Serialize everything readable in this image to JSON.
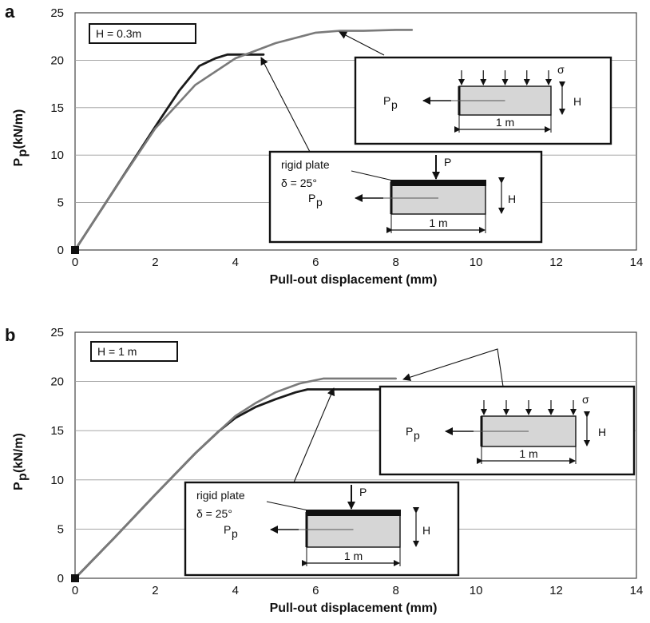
{
  "chart_data": [
    {
      "type": "line",
      "panel_label": "a",
      "param_label": "H = 0.3m",
      "xlabel": "Pull-out displacement (mm)",
      "ylabel": "P",
      "ylabel_sub": "p",
      "ylabel_units": "(kN/m)",
      "xlim": [
        0,
        14
      ],
      "ylim": [
        0,
        25
      ],
      "xticks": [
        "0",
        "2",
        "4",
        "6",
        "8",
        "10",
        "12",
        "14"
      ],
      "yticks": [
        "0",
        "5",
        "10",
        "15",
        "20",
        "25"
      ],
      "grid": "horizontal",
      "series": [
        {
          "color": "#1a1a1a",
          "x": [
            0,
            1.0,
            2.0,
            2.6,
            3.1,
            3.5,
            3.8,
            4.1,
            4.5,
            4.7
          ],
          "y": [
            0,
            6.5,
            13.0,
            16.8,
            19.4,
            20.2,
            20.6,
            20.6,
            20.6,
            20.6
          ]
        },
        {
          "color": "#7a7a7a",
          "x": [
            0,
            1.0,
            2.0,
            3.0,
            4.0,
            5.0,
            6.0,
            6.6,
            7.2,
            8.0,
            8.4
          ],
          "y": [
            0,
            6.5,
            12.8,
            17.4,
            20.2,
            21.8,
            22.9,
            23.1,
            23.1,
            23.2,
            23.2
          ]
        }
      ],
      "insets": {
        "distributed": {
          "load_symbol": "σ",
          "force_label": "P",
          "force_sub": "p",
          "width_label": "1 m",
          "height_label": "H"
        },
        "rigid": {
          "plate_label": "rigid plate",
          "friction_label": "δ = 25°",
          "load_symbol": "P",
          "force_label": "P",
          "force_sub": "p",
          "width_label": "1 m",
          "height_label": "H"
        }
      },
      "colors": {
        "dark_series": "#1a1a1a",
        "grey_series": "#7a7a7a",
        "inset_fill": "#d6d6d6"
      }
    },
    {
      "type": "line",
      "panel_label": "b",
      "param_label": "H = 1 m",
      "xlabel": "Pull-out displacement (mm)",
      "ylabel": "P",
      "ylabel_sub": "p",
      "ylabel_units": "(kN/m)",
      "xlim": [
        0,
        14
      ],
      "ylim": [
        0,
        25
      ],
      "xticks": [
        "0",
        "2",
        "4",
        "6",
        "8",
        "10",
        "12",
        "14"
      ],
      "yticks": [
        "0",
        "5",
        "10",
        "15",
        "20",
        "25"
      ],
      "grid": "horizontal",
      "series": [
        {
          "color": "#1a1a1a",
          "x": [
            0,
            1.0,
            2.0,
            3.0,
            3.6,
            4.0,
            4.5,
            5.0,
            5.5,
            5.8,
            6.5,
            7.5,
            8.0
          ],
          "y": [
            0,
            4.2,
            8.5,
            12.7,
            15.0,
            16.3,
            17.4,
            18.2,
            18.9,
            19.2,
            19.2,
            19.2,
            19.2
          ]
        },
        {
          "color": "#7a7a7a",
          "x": [
            0,
            1.0,
            2.0,
            3.0,
            3.6,
            4.0,
            4.5,
            5.0,
            5.6,
            6.2,
            6.8,
            7.4,
            8.0
          ],
          "y": [
            0,
            4.2,
            8.5,
            12.7,
            15.0,
            16.5,
            17.8,
            18.9,
            19.8,
            20.3,
            20.3,
            20.3,
            20.3
          ]
        }
      ],
      "insets": {
        "distributed": {
          "load_symbol": "σ",
          "force_label": "P",
          "force_sub": "p",
          "width_label": "1 m",
          "height_label": "H"
        },
        "rigid": {
          "plate_label": "rigid plate",
          "friction_label": "δ = 25°",
          "load_symbol": "P",
          "force_label": "P",
          "force_sub": "p",
          "width_label": "1 m",
          "height_label": "H"
        }
      },
      "colors": {
        "dark_series": "#1a1a1a",
        "grey_series": "#7a7a7a",
        "inset_fill": "#d6d6d6"
      }
    }
  ]
}
